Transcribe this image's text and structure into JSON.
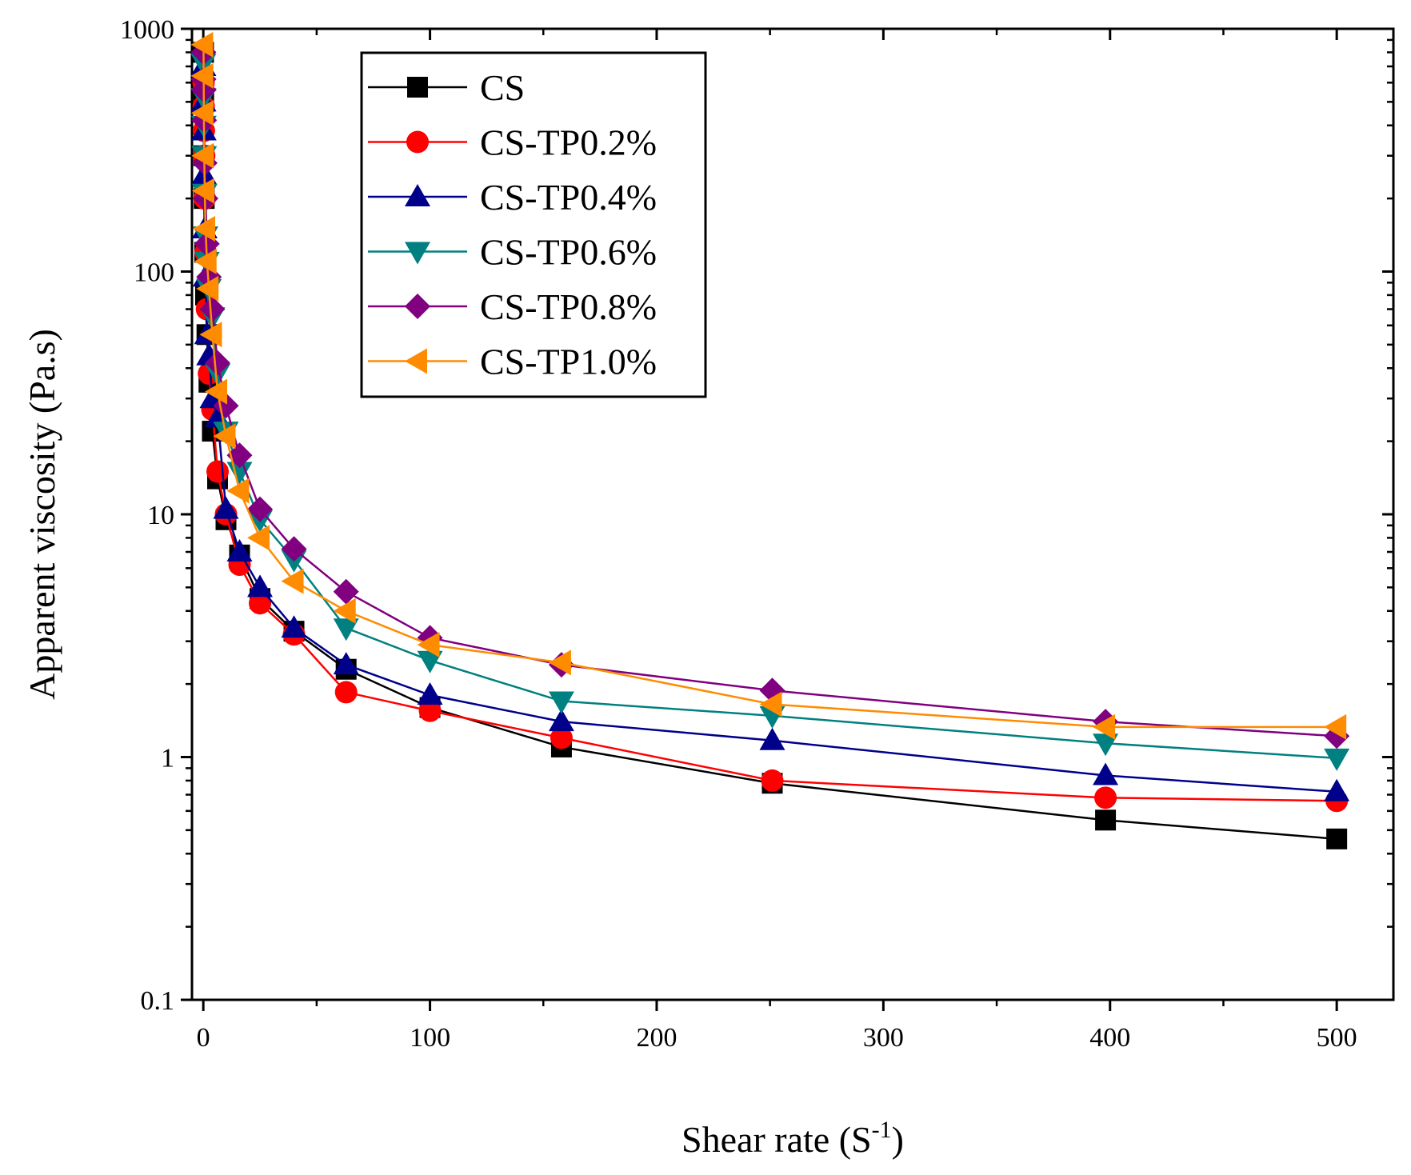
{
  "chart_data": {
    "type": "line",
    "title": "",
    "xlabel": "Shear rate (S",
    "xlabel_sup": "-1",
    "xlabel_tail": ")",
    "ylabel": "Apparent viscosity (Pa.s)",
    "xlim": [
      -5,
      525
    ],
    "ylim": [
      0.1,
      1000
    ],
    "yscale": "log",
    "xticks": [
      0,
      100,
      200,
      300,
      400,
      500
    ],
    "xtick_labels": [
      "0",
      "100",
      "200",
      "300",
      "400",
      "500"
    ],
    "yticks": [
      0.1,
      1,
      10,
      100,
      1000
    ],
    "ytick_labels": [
      "0.1",
      "1",
      "10",
      "100",
      "1000"
    ],
    "legend_position": "top-left",
    "grid": false,
    "series": [
      {
        "name": "CS",
        "color": "#000000",
        "marker": "square",
        "x": [
          0.1,
          0.16,
          0.25,
          0.4,
          0.63,
          1,
          1.6,
          2.5,
          4,
          6.3,
          10,
          16,
          25,
          40,
          63,
          100,
          158,
          251,
          398,
          500
        ],
        "y": [
          800,
          500,
          300,
          200,
          120,
          80,
          55,
          35,
          22,
          14,
          9.5,
          6.8,
          4.5,
          3.3,
          2.3,
          1.6,
          1.1,
          0.78,
          0.55,
          0.46
        ]
      },
      {
        "name": "CS-TP0.2%",
        "color": "#ff0000",
        "marker": "circle",
        "x": [
          0.1,
          0.16,
          0.25,
          0.4,
          0.63,
          1,
          1.6,
          2.5,
          4,
          6.3,
          10,
          16,
          25,
          40,
          63,
          100,
          158,
          251,
          398,
          500
        ],
        "y": [
          600,
          480,
          380,
          300,
          200,
          120,
          70,
          38,
          27,
          15,
          10,
          6.2,
          4.3,
          3.2,
          1.85,
          1.55,
          1.2,
          0.8,
          0.68,
          0.66
        ]
      },
      {
        "name": "CS-TP0.4%",
        "color": "#00008b",
        "marker": "triangle-up",
        "x": [
          0.1,
          0.16,
          0.25,
          0.4,
          0.63,
          1,
          1.6,
          2.5,
          4,
          6.3,
          10,
          16,
          25,
          40,
          63,
          100,
          158,
          251,
          398,
          500
        ],
        "y": [
          700,
          500,
          380,
          250,
          150,
          95,
          55,
          45,
          30,
          25,
          10.5,
          7,
          5,
          3.4,
          2.4,
          1.8,
          1.4,
          1.17,
          0.84,
          0.72
        ]
      },
      {
        "name": "CS-TP0.6%",
        "color": "#008080",
        "marker": "triangle-down",
        "x": [
          0.1,
          0.16,
          0.25,
          0.4,
          0.63,
          1,
          1.6,
          2.5,
          4,
          6.3,
          10,
          16,
          25,
          40,
          63,
          100,
          158,
          251,
          398,
          500
        ],
        "y": [
          720,
          520,
          400,
          300,
          210,
          140,
          110,
          85,
          65,
          38,
          22,
          15,
          9.5,
          6.5,
          3.4,
          2.5,
          1.7,
          1.48,
          1.14,
          0.99
        ]
      },
      {
        "name": "CS-TP0.8%",
        "color": "#800080",
        "marker": "diamond",
        "x": [
          0.1,
          0.16,
          0.25,
          0.4,
          0.63,
          1,
          1.6,
          2.5,
          4,
          6.3,
          10,
          16,
          25,
          40,
          63,
          100,
          158,
          251,
          398,
          500
        ],
        "y": [
          800,
          620,
          560,
          420,
          280,
          200,
          130,
          95,
          70,
          42,
          28,
          17.5,
          10.5,
          7.2,
          4.8,
          3.1,
          2.4,
          1.88,
          1.4,
          1.22
        ]
      },
      {
        "name": "CS-TP1.0%",
        "color": "#ff8c00",
        "marker": "triangle-left",
        "x": [
          0.1,
          0.16,
          0.25,
          0.4,
          0.63,
          1,
          1.6,
          2.5,
          4,
          6.3,
          10,
          16,
          25,
          40,
          63,
          100,
          158,
          251,
          398,
          500
        ],
        "y": [
          860,
          640,
          450,
          300,
          215,
          150,
          110,
          85,
          55,
          32,
          21,
          12.5,
          8,
          5.3,
          4.0,
          2.9,
          2.45,
          1.65,
          1.33,
          1.33
        ]
      }
    ]
  }
}
